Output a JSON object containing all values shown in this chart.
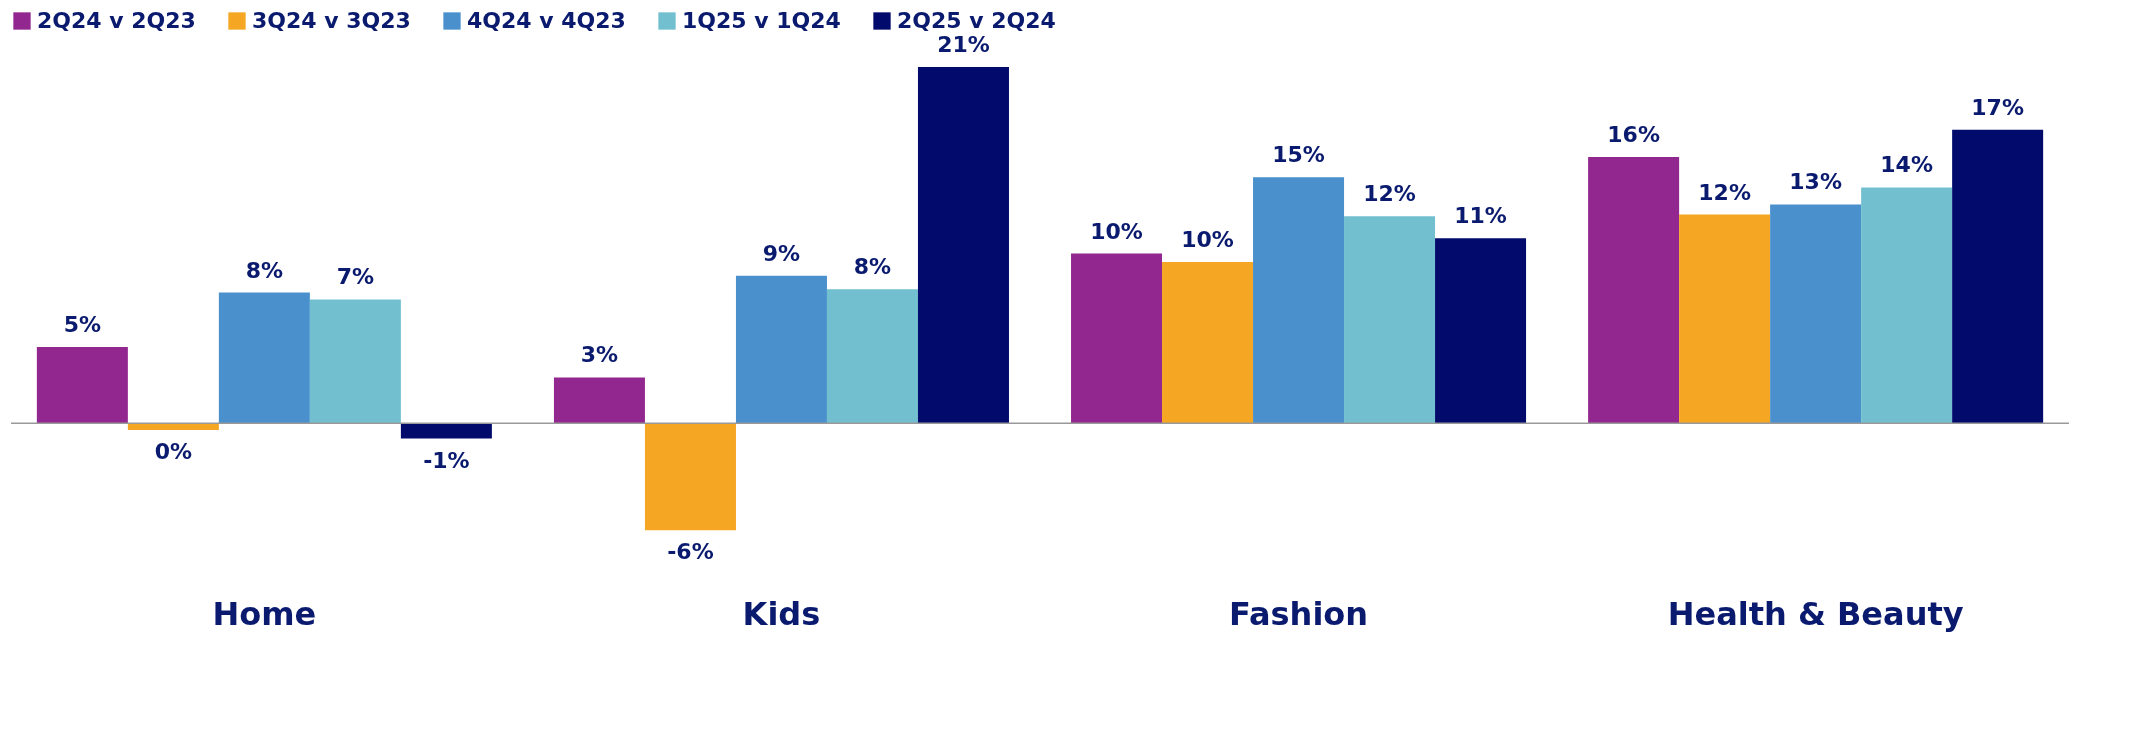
{
  "chart_data": {
    "type": "bar",
    "categories": [
      "Home",
      "Kids",
      "Fashion",
      "Health & Beauty"
    ],
    "series": [
      {
        "name": "2Q24 v 2Q23",
        "color": "#92278f",
        "values": [
          4.5,
          2.7,
          10.0,
          15.7
        ],
        "value_labels": [
          "5%",
          "3%",
          "10%",
          "16%"
        ]
      },
      {
        "name": "3Q24 v 3Q23",
        "color": "#f5a623",
        "values": [
          -0.4,
          -6.3,
          9.5,
          12.3
        ],
        "value_labels": [
          "0%",
          "-6%",
          "10%",
          "12%"
        ]
      },
      {
        "name": "4Q24 v 4Q23",
        "color": "#4a90cd",
        "values": [
          7.7,
          8.7,
          14.5,
          12.9
        ],
        "value_labels": [
          "8%",
          "9%",
          "15%",
          "13%"
        ]
      },
      {
        "name": "1Q25 v 1Q24",
        "color": "#72bfd0",
        "values": [
          7.3,
          7.9,
          12.2,
          13.9
        ],
        "value_labels": [
          "7%",
          "8%",
          "12%",
          "14%"
        ]
      },
      {
        "name": "2Q25 v 2Q24",
        "color": "#020b6b",
        "values": [
          -0.9,
          21.0,
          10.9,
          17.3
        ],
        "value_labels": [
          "-1%",
          "21%",
          "11%",
          "17%"
        ]
      }
    ],
    "legend": "top"
  }
}
